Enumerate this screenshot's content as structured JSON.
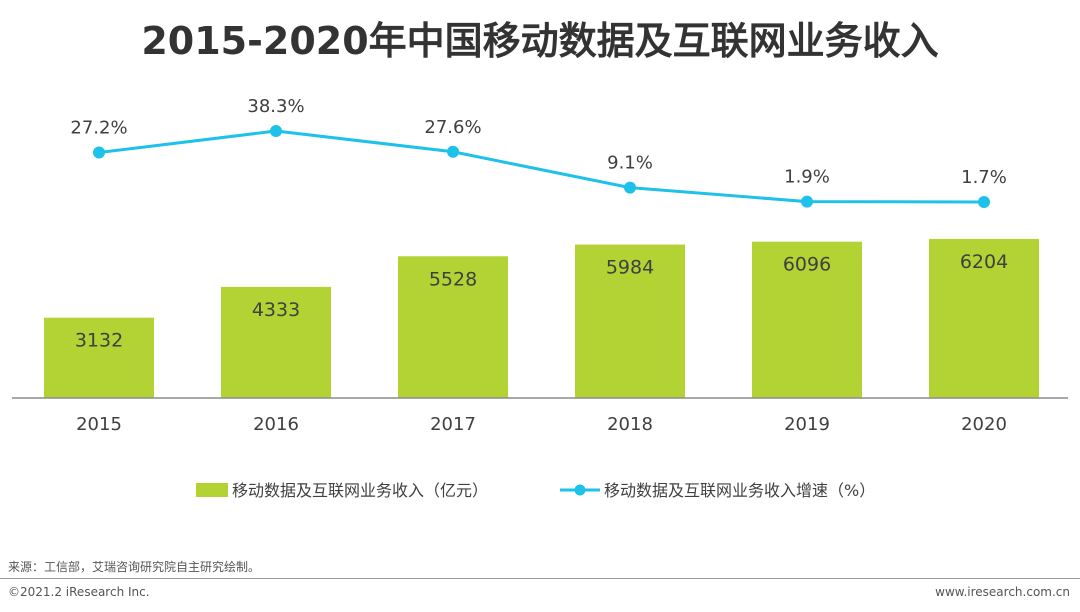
{
  "title": "2015-2020年中国移动数据及互联网业务收入",
  "chart_data": {
    "type": "bar+line",
    "categories": [
      "2015",
      "2016",
      "2017",
      "2018",
      "2019",
      "2020"
    ],
    "series": [
      {
        "name": "移动数据及互联网业务收入（亿元）",
        "type": "bar",
        "values": [
          3132,
          4333,
          5528,
          5984,
          6096,
          6204
        ],
        "labels": [
          "3132",
          "4333",
          "5528",
          "5984",
          "6096",
          "6204"
        ],
        "color": "#b3d234"
      },
      {
        "name": "移动数据及互联网业务收入增速（%）",
        "type": "line",
        "values": [
          27.2,
          38.3,
          27.6,
          9.1,
          1.9,
          1.7
        ],
        "labels": [
          "27.2%",
          "38.3%",
          "27.6%",
          "9.1%",
          "1.9%",
          "1.7%"
        ],
        "color": "#1ec1ea"
      }
    ],
    "legend_position": "bottom"
  },
  "footer": {
    "source": "来源：工信部，艾瑞咨询研究院自主研究绘制。",
    "copyright": "©2021.2 iResearch Inc.",
    "website": "www.iresearch.com.cn"
  }
}
